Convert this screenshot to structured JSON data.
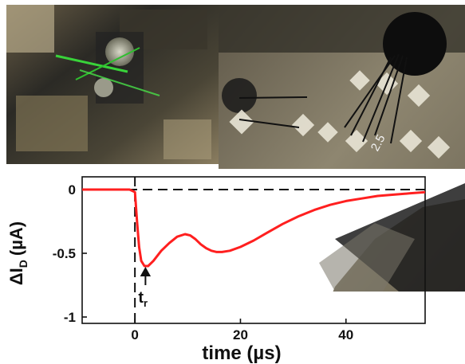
{
  "photos": {
    "left": {
      "description": "optical-setup-photo"
    },
    "right": {
      "pad_label": "2.5"
    }
  },
  "chart_data": {
    "type": "line",
    "title": "",
    "xlabel": "time (µs)",
    "ylabel": "ΔI",
    "ylabel_sub": "D",
    "ylabel_unit": "(µA)",
    "xlim": [
      -10,
      55
    ],
    "ylim": [
      -1.05,
      0.1
    ],
    "xticks": [
      0,
      20,
      40
    ],
    "yticks": [
      0,
      -0.5,
      -1
    ],
    "ytick_labels": [
      "0",
      "-0.5",
      "-1"
    ],
    "grid": false,
    "series": [
      {
        "color": "#ff1f1f",
        "x": [
          -10,
          -6,
          -3,
          -1,
          0,
          0.4,
          0.8,
          1.2,
          1.8,
          2.5,
          3.5,
          5,
          6.5,
          8,
          9.5,
          10.5,
          11.5,
          12.5,
          13.5,
          14.5,
          15.5,
          16.5,
          18,
          20,
          22.5,
          25,
          28,
          31,
          34,
          37,
          40,
          43,
          46,
          49,
          52,
          55
        ],
        "y": [
          0.0,
          0.0,
          0.0,
          0.0,
          -0.02,
          -0.25,
          -0.45,
          -0.56,
          -0.6,
          -0.6,
          -0.56,
          -0.48,
          -0.42,
          -0.37,
          -0.35,
          -0.36,
          -0.39,
          -0.43,
          -0.46,
          -0.48,
          -0.49,
          -0.49,
          -0.48,
          -0.45,
          -0.4,
          -0.34,
          -0.27,
          -0.21,
          -0.16,
          -0.12,
          -0.09,
          -0.07,
          -0.05,
          -0.04,
          -0.03,
          -0.02
        ]
      }
    ],
    "zero_line": {
      "y": 0,
      "style": "dashed"
    },
    "event_line": {
      "x": 0,
      "style": "dashed"
    },
    "annotation": {
      "text": "t",
      "sub": "r",
      "x": 2,
      "y": -0.6
    }
  }
}
